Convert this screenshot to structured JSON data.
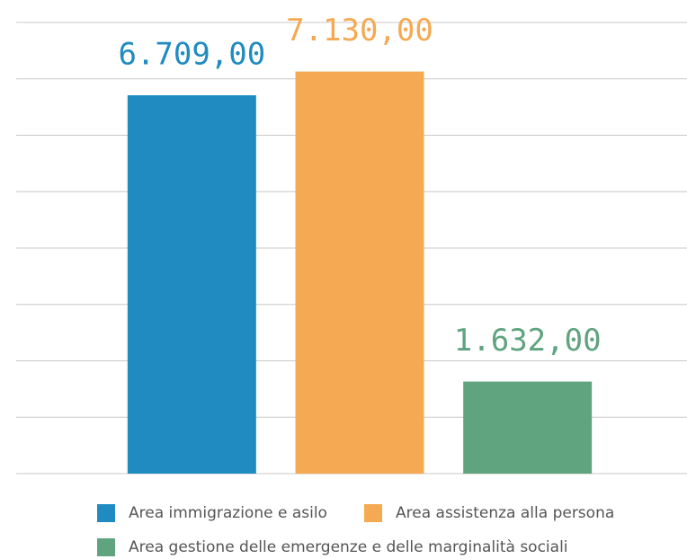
{
  "chart_data": {
    "type": "bar",
    "categories": [
      "Area immigrazione e asilo",
      "Area assistenza alla persona",
      "Area gestione delle emergenze e delle marginalità sociali"
    ],
    "values": [
      6709,
      7130,
      1632
    ],
    "value_labels": [
      "6.709,00",
      "7.130,00",
      "1.632,00"
    ],
    "colors": [
      "#1f8bc1",
      "#f5a952",
      "#5fa37f"
    ],
    "ylim": [
      0,
      8000
    ],
    "yticks": [
      0,
      1000,
      2000,
      3000,
      4000,
      5000,
      6000,
      7000,
      8000
    ],
    "grid": true
  }
}
